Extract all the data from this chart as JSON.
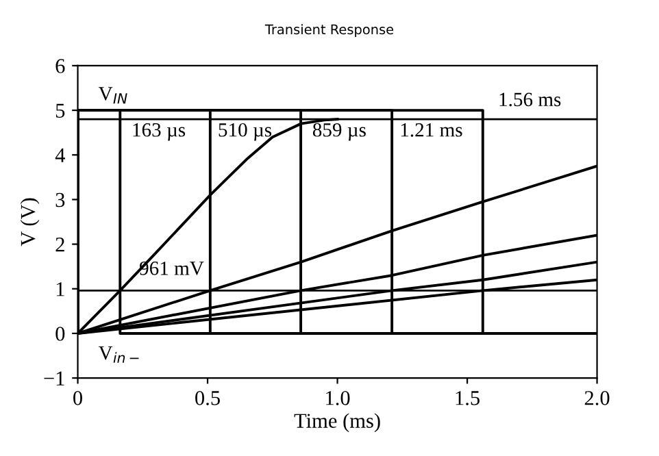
{
  "chart_data": {
    "type": "line",
    "title": "Transient Response",
    "xlabel": "Time (ms)",
    "ylabel": "V (V)",
    "xlim": [
      0,
      2.0
    ],
    "ylim": [
      -1,
      6
    ],
    "xticks": [
      0,
      {
        "value": 0.5,
        "label": "0.5"
      },
      {
        "value": 1.0,
        "label": "1.0"
      },
      {
        "value": 1.5,
        "label": "1.5"
      },
      {
        "value": 2.0,
        "label": "2.0"
      }
    ],
    "yticks": [
      {
        "value": -1,
        "label": "−1"
      },
      0,
      1,
      2,
      3,
      4,
      5,
      6
    ],
    "grid": false,
    "legend": false,
    "marker": "none",
    "line_style": "solid",
    "series": [
      {
        "color": "#000000",
        "x": [
          0,
          0,
          0.163,
          0.163,
          2.0
        ],
        "values": [
          0,
          5,
          5,
          0,
          0
        ]
      },
      {
        "color": "#000000",
        "x": [
          0,
          0,
          0.51,
          0.51,
          2.0
        ],
        "values": [
          0,
          5,
          5,
          0,
          0
        ]
      },
      {
        "color": "#000000",
        "x": [
          0,
          0,
          0.859,
          0.859,
          2.0
        ],
        "values": [
          0,
          5,
          5,
          0,
          0
        ]
      },
      {
        "color": "#000000",
        "x": [
          0,
          0,
          1.21,
          1.21,
          2.0
        ],
        "values": [
          0,
          5,
          5,
          0,
          0
        ]
      },
      {
        "color": "#000000",
        "x": [
          0,
          0,
          1.56,
          1.56,
          2.0
        ],
        "values": [
          0,
          5,
          5,
          0,
          0
        ]
      },
      {
        "color": "#000000",
        "x": [
          0,
          0.163,
          0.3,
          0.51,
          0.65,
          0.75,
          0.86,
          0.95,
          1.0
        ],
        "values": [
          0,
          0.96,
          1.8,
          3.1,
          3.9,
          4.4,
          4.7,
          4.78,
          4.8
        ]
      },
      {
        "color": "#000000",
        "x": [
          0,
          0.51,
          0.86,
          1.21,
          1.56,
          2.0
        ],
        "values": [
          0,
          0.96,
          1.6,
          2.3,
          2.95,
          3.75
        ]
      },
      {
        "color": "#000000",
        "x": [
          0,
          0.859,
          1.21,
          1.56,
          2.0
        ],
        "values": [
          0,
          0.96,
          1.3,
          1.75,
          2.2
        ]
      },
      {
        "color": "#000000",
        "x": [
          0,
          1.21,
          1.56,
          2.0
        ],
        "values": [
          0,
          0.96,
          1.2,
          1.6
        ]
      },
      {
        "color": "#000000",
        "x": [
          0,
          1.56,
          2.0
        ],
        "values": [
          0,
          0.96,
          1.2
        ]
      }
    ],
    "ref_lines": [
      {
        "axis": "y",
        "value": 4.8,
        "color": "#000000"
      },
      {
        "axis": "y",
        "value": 0.961,
        "color": "#000000"
      }
    ],
    "annotations": [
      {
        "text": "V$_{IN}$",
        "x": 0.05,
        "y": 5
      },
      {
        "text": "V$_{in−}$",
        "x": 0.05,
        "y": 0
      },
      {
        "text": "163 µs",
        "x": 0.163,
        "y": 5
      },
      {
        "text": "510 µs",
        "x": 0.51,
        "y": 5
      },
      {
        "text": "859 µs",
        "x": 0.859,
        "y": 5
      },
      {
        "text": "1.21 ms",
        "x": 1.21,
        "y": 5
      },
      {
        "text": "1.56 ms",
        "x": 1.56,
        "y": 5
      },
      {
        "text": "961 mV",
        "x": 0.163,
        "y": 0.961
      }
    ]
  }
}
